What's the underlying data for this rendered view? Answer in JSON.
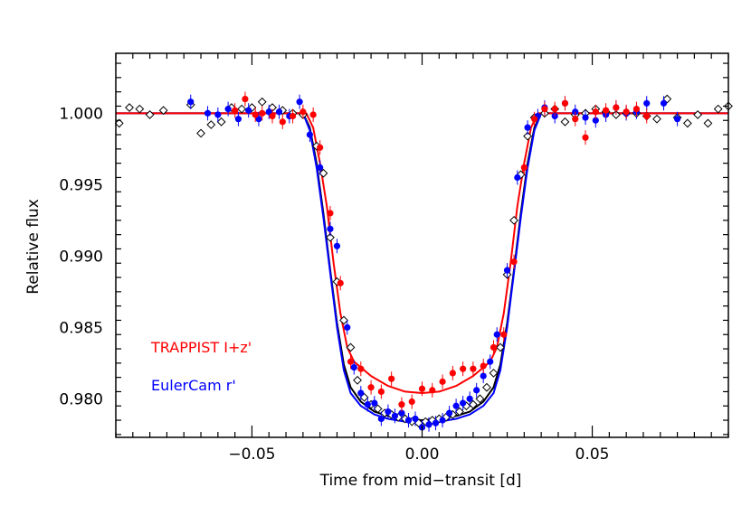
{
  "chart_data": {
    "type": "scatter",
    "title": "",
    "xlabel": "Time from mid−transit [d]",
    "ylabel": "Relative flux",
    "xlim": [
      -0.09,
      0.09
    ],
    "ylim": [
      0.9773,
      1.0042
    ],
    "xticks": [
      -0.05,
      0.0,
      0.05
    ],
    "xtick_labels": [
      "−0.05",
      "0.00",
      "0.05"
    ],
    "yticks": [
      0.98,
      0.985,
      0.99,
      0.995,
      1.0
    ],
    "ytick_labels": [
      "0.980",
      "0.985",
      "0.990",
      "0.995",
      "1.000"
    ],
    "grid": false,
    "legend_position": "bottom-left",
    "series": [
      {
        "name": "TRAPPIST I+z'",
        "color": "#ff0000",
        "marker": "filled-circle",
        "points": [
          [
            -0.055,
            1.0002
          ],
          [
            -0.052,
            1.001
          ],
          [
            -0.049,
            0.9999
          ],
          [
            -0.047,
            1.0
          ],
          [
            -0.044,
            0.9998
          ],
          [
            -0.041,
            0.9994
          ],
          [
            -0.038,
            0.9998
          ],
          [
            -0.035,
            1.0001
          ],
          [
            -0.032,
            0.9999
          ],
          [
            -0.03,
            0.9976
          ],
          [
            -0.027,
            0.993
          ],
          [
            -0.024,
            0.9881
          ],
          [
            -0.021,
            0.9826
          ],
          [
            -0.018,
            0.9821
          ],
          [
            -0.015,
            0.9808
          ],
          [
            -0.012,
            0.9805
          ],
          [
            -0.009,
            0.9814
          ],
          [
            -0.006,
            0.9796
          ],
          [
            -0.003,
            0.9798
          ],
          [
            0.0,
            0.9807
          ],
          [
            0.003,
            0.9806
          ],
          [
            0.006,
            0.9812
          ],
          [
            0.009,
            0.9818
          ],
          [
            0.012,
            0.9821
          ],
          [
            0.015,
            0.9821
          ],
          [
            0.018,
            0.9823
          ],
          [
            0.021,
            0.9836
          ],
          [
            0.024,
            0.9845
          ],
          [
            0.027,
            0.9896
          ],
          [
            0.03,
            0.9962
          ],
          [
            0.033,
            0.9996
          ],
          [
            0.036,
            1.0003
          ],
          [
            0.039,
            1.0003
          ],
          [
            0.042,
            1.0007
          ],
          [
            0.045,
            0.9996
          ],
          [
            0.048,
            0.9983
          ],
          [
            0.051,
            1.0001
          ],
          [
            0.054,
            1.0002
          ],
          [
            0.057,
            1.0004
          ],
          [
            0.06,
            1.0001
          ],
          [
            0.063,
            1.0003
          ],
          [
            0.066,
            0.9998
          ]
        ],
        "model": [
          [
            -0.09,
            1.0
          ],
          [
            -0.034,
            1.0
          ],
          [
            -0.032,
            0.999
          ],
          [
            -0.03,
            0.9965
          ],
          [
            -0.028,
            0.9935
          ],
          [
            -0.026,
            0.9895
          ],
          [
            -0.024,
            0.986
          ],
          [
            -0.022,
            0.9836
          ],
          [
            -0.02,
            0.9826
          ],
          [
            -0.015,
            0.9816
          ],
          [
            -0.01,
            0.9809
          ],
          [
            -0.005,
            0.9805
          ],
          [
            0.0,
            0.9804
          ],
          [
            0.005,
            0.9805
          ],
          [
            0.01,
            0.9809
          ],
          [
            0.015,
            0.9816
          ],
          [
            0.02,
            0.9826
          ],
          [
            0.022,
            0.9836
          ],
          [
            0.024,
            0.986
          ],
          [
            0.026,
            0.9895
          ],
          [
            0.028,
            0.9935
          ],
          [
            0.03,
            0.9965
          ],
          [
            0.032,
            0.999
          ],
          [
            0.034,
            1.0
          ],
          [
            0.09,
            1.0
          ]
        ]
      },
      {
        "name": "EulerCam r'",
        "color": "#0000ff",
        "marker": "filled-circle",
        "points": [
          [
            -0.068,
            1.0008
          ],
          [
            -0.063,
            1.0
          ],
          [
            -0.06,
            0.9999
          ],
          [
            -0.057,
            1.0003
          ],
          [
            -0.054,
            0.9996
          ],
          [
            -0.051,
            1.0002
          ],
          [
            -0.048,
            0.9996
          ],
          [
            -0.045,
            1.0001
          ],
          [
            -0.042,
            1.0001
          ],
          [
            -0.039,
            0.9998
          ],
          [
            -0.036,
            1.0008
          ],
          [
            -0.033,
            0.9985
          ],
          [
            -0.03,
            0.9962
          ],
          [
            -0.027,
            0.9919
          ],
          [
            -0.025,
            0.9907
          ],
          [
            -0.022,
            0.985
          ],
          [
            -0.02,
            0.9822
          ],
          [
            -0.018,
            0.9804
          ],
          [
            -0.016,
            0.9796
          ],
          [
            -0.014,
            0.9797
          ],
          [
            -0.012,
            0.9786
          ],
          [
            -0.01,
            0.9791
          ],
          [
            -0.008,
            0.9788
          ],
          [
            -0.006,
            0.979
          ],
          [
            -0.004,
            0.9785
          ],
          [
            -0.002,
            0.9786
          ],
          [
            0.0,
            0.978
          ],
          [
            0.002,
            0.9782
          ],
          [
            0.004,
            0.9783
          ],
          [
            0.006,
            0.9785
          ],
          [
            0.008,
            0.979
          ],
          [
            0.01,
            0.9795
          ],
          [
            0.012,
            0.9797
          ],
          [
            0.014,
            0.98
          ],
          [
            0.016,
            0.9806
          ],
          [
            0.018,
            0.9816
          ],
          [
            0.02,
            0.9826
          ],
          [
            0.022,
            0.9845
          ],
          [
            0.025,
            0.989
          ],
          [
            0.028,
            0.9955
          ],
          [
            0.031,
            0.999
          ],
          [
            0.034,
            0.9998
          ],
          [
            0.036,
            1.0004
          ],
          [
            0.039,
            0.9998
          ],
          [
            0.042,
            1.0007
          ],
          [
            0.045,
            1.0001
          ],
          [
            0.048,
            0.9997
          ],
          [
            0.051,
            0.9995
          ],
          [
            0.054,
            0.9999
          ],
          [
            0.057,
            1.0004
          ],
          [
            0.06,
            1.0
          ],
          [
            0.063,
            1.0001
          ],
          [
            0.066,
            1.0007
          ],
          [
            0.071,
            1.0007
          ],
          [
            0.075,
            0.9996
          ]
        ],
        "model": [
          [
            -0.09,
            1.0
          ],
          [
            -0.035,
            1.0
          ],
          [
            -0.033,
            0.9988
          ],
          [
            -0.031,
            0.9962
          ],
          [
            -0.029,
            0.9927
          ],
          [
            -0.027,
            0.9888
          ],
          [
            -0.025,
            0.985
          ],
          [
            -0.023,
            0.982
          ],
          [
            -0.021,
            0.9804
          ],
          [
            -0.018,
            0.9795
          ],
          [
            -0.014,
            0.9789
          ],
          [
            -0.01,
            0.9786
          ],
          [
            -0.005,
            0.9784
          ],
          [
            0.0,
            0.9783
          ],
          [
            0.005,
            0.9784
          ],
          [
            0.01,
            0.9786
          ],
          [
            0.014,
            0.9789
          ],
          [
            0.018,
            0.9795
          ],
          [
            0.021,
            0.9804
          ],
          [
            0.023,
            0.982
          ],
          [
            0.025,
            0.985
          ],
          [
            0.027,
            0.9888
          ],
          [
            0.029,
            0.9927
          ],
          [
            0.031,
            0.9962
          ],
          [
            0.033,
            0.9988
          ],
          [
            0.035,
            1.0
          ],
          [
            0.09,
            1.0
          ]
        ]
      },
      {
        "name": "",
        "color": "#000000",
        "marker": "open-diamond",
        "points": [
          [
            -0.089,
            0.9993
          ],
          [
            -0.086,
            1.0004
          ],
          [
            -0.083,
            1.0003
          ],
          [
            -0.08,
            0.9999
          ],
          [
            -0.076,
            1.0002
          ],
          [
            -0.068,
            1.0006
          ],
          [
            -0.065,
            0.9986
          ],
          [
            -0.062,
            0.9992
          ],
          [
            -0.059,
            0.9994
          ],
          [
            -0.056,
            1.0004
          ],
          [
            -0.053,
            1.0003
          ],
          [
            -0.05,
            1.0004
          ],
          [
            -0.047,
            1.0008
          ],
          [
            -0.044,
            1.0004
          ],
          [
            -0.041,
            1.0002
          ],
          [
            -0.038,
            1.0
          ],
          [
            -0.035,
            0.9999
          ],
          [
            -0.031,
            0.9977
          ],
          [
            -0.029,
            0.9958
          ],
          [
            -0.027,
            0.9913
          ],
          [
            -0.025,
            0.9882
          ],
          [
            -0.023,
            0.9855
          ],
          [
            -0.021,
            0.9836
          ],
          [
            -0.019,
            0.9813
          ],
          [
            -0.017,
            0.9801
          ],
          [
            -0.015,
            0.9796
          ],
          [
            -0.013,
            0.9793
          ],
          [
            -0.011,
            0.979
          ],
          [
            -0.009,
            0.9789
          ],
          [
            -0.007,
            0.9787
          ],
          [
            -0.005,
            0.9786
          ],
          [
            -0.003,
            0.9784
          ],
          [
            -0.001,
            0.9783
          ],
          [
            0.001,
            0.9784
          ],
          [
            0.003,
            0.9785
          ],
          [
            0.005,
            0.9786
          ],
          [
            0.007,
            0.9787
          ],
          [
            0.009,
            0.9789
          ],
          [
            0.011,
            0.9791
          ],
          [
            0.013,
            0.9795
          ],
          [
            0.015,
            0.9796
          ],
          [
            0.017,
            0.98
          ],
          [
            0.019,
            0.9808
          ],
          [
            0.021,
            0.9818
          ],
          [
            0.023,
            0.9836
          ],
          [
            0.025,
            0.9887
          ],
          [
            0.027,
            0.9925
          ],
          [
            0.029,
            0.9957
          ],
          [
            0.031,
            0.9984
          ],
          [
            0.033,
            0.9997
          ],
          [
            0.036,
            1.0
          ],
          [
            0.039,
            1.0003
          ],
          [
            0.042,
            0.9994
          ],
          [
            0.045,
            0.9999
          ],
          [
            0.048,
            1.0
          ],
          [
            0.051,
            1.0003
          ],
          [
            0.054,
            1.0001
          ],
          [
            0.057,
            0.9999
          ],
          [
            0.06,
            1.0
          ],
          [
            0.063,
            1.0
          ],
          [
            0.066,
            0.9998
          ],
          [
            0.069,
            0.9996
          ],
          [
            0.072,
            1.001
          ],
          [
            0.075,
            0.9997
          ],
          [
            0.078,
            0.9993
          ],
          [
            0.081,
            0.9999
          ],
          [
            0.084,
            0.9993
          ],
          [
            0.087,
            1.0003
          ],
          [
            0.09,
            1.0005
          ]
        ],
        "model": [
          [
            -0.09,
            1.0
          ],
          [
            -0.035,
            1.0
          ],
          [
            -0.033,
            0.999
          ],
          [
            -0.031,
            0.9965
          ],
          [
            -0.029,
            0.993
          ],
          [
            -0.027,
            0.989
          ],
          [
            -0.025,
            0.9853
          ],
          [
            -0.023,
            0.9824
          ],
          [
            -0.021,
            0.9808
          ],
          [
            -0.018,
            0.9798
          ],
          [
            -0.014,
            0.9791
          ],
          [
            -0.01,
            0.9788
          ],
          [
            -0.005,
            0.9786
          ],
          [
            0.0,
            0.9785
          ],
          [
            0.005,
            0.9786
          ],
          [
            0.01,
            0.9788
          ],
          [
            0.014,
            0.9791
          ],
          [
            0.018,
            0.9798
          ],
          [
            0.021,
            0.9808
          ],
          [
            0.023,
            0.9824
          ],
          [
            0.025,
            0.9853
          ],
          [
            0.027,
            0.989
          ],
          [
            0.029,
            0.993
          ],
          [
            0.031,
            0.9965
          ],
          [
            0.033,
            0.999
          ],
          [
            0.035,
            1.0
          ],
          [
            0.09,
            1.0
          ]
        ]
      }
    ],
    "legend": [
      {
        "label": "TRAPPIST I+z'",
        "color": "#ff0000"
      },
      {
        "label": "EulerCam r'",
        "color": "#0000ff"
      }
    ]
  }
}
